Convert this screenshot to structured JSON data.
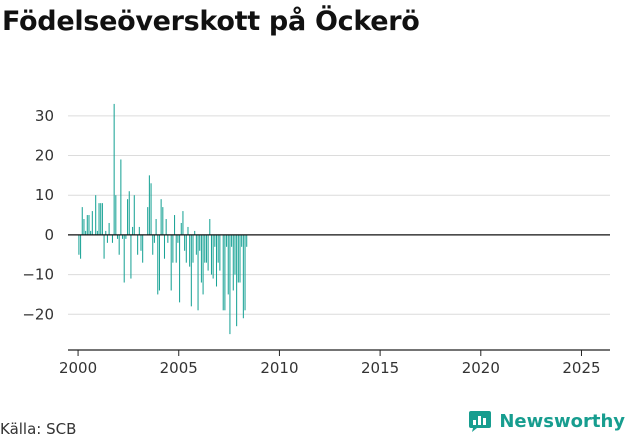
{
  "title": "Födelseöverskott på Öckerö",
  "source": "Källa: SCB",
  "brand": {
    "name": "Newsworthy",
    "icon": "bar-chart-speech-bubble-icon",
    "color": "#179d8f"
  },
  "chart_data": {
    "type": "bar",
    "title": "Födelseöverskott på Öckerö",
    "xlabel": "",
    "ylabel": "",
    "frequency": "monthly",
    "x_ticks": [
      2000,
      2005,
      2010,
      2015,
      2020,
      2025
    ],
    "y_ticks": [
      -20,
      -10,
      0,
      10,
      20,
      30
    ],
    "xlim": [
      "1999-07",
      "2026-06"
    ],
    "ylim": [
      -29,
      36
    ],
    "grid": "horizontal",
    "bar_color": "#1aa396",
    "series": [
      {
        "start": "2000-01",
        "values": [
          -5,
          -6,
          7,
          4,
          1,
          5,
          5,
          1,
          6,
          0,
          10,
          1,
          8,
          8,
          8,
          -6,
          1,
          -2,
          3,
          0,
          -2,
          33,
          10,
          -1,
          -5,
          19,
          -1,
          -12,
          -1,
          9,
          11,
          -11,
          2,
          10,
          0,
          -5,
          2,
          -4,
          -7,
          0,
          0,
          7,
          15,
          13,
          -5,
          -2,
          4,
          -15,
          -14,
          9,
          7,
          -6,
          4,
          -2,
          0,
          -14,
          -7,
          5,
          -7,
          -2,
          -17,
          3,
          6,
          -4,
          -7,
          2,
          -8,
          -18,
          -7,
          1,
          -5,
          -19,
          -4,
          -12,
          -15,
          -7,
          -7,
          -9,
          4,
          -10,
          -11,
          -3,
          -13,
          -7,
          -9,
          0,
          -19,
          -19,
          -3,
          -15,
          -25,
          -3,
          -14,
          -10,
          -23,
          -12,
          -12,
          -3,
          -21,
          -19,
          -3
        ]
      }
    ]
  }
}
